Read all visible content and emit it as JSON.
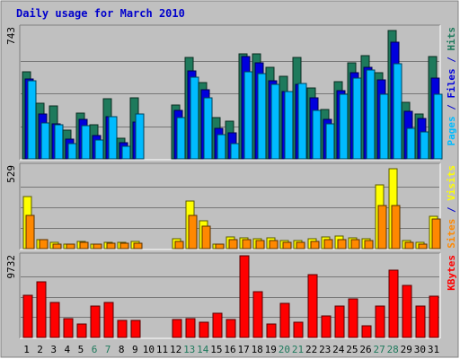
{
  "colors": {
    "background": "#C0C0C0",
    "frame_bg": "#FFFFFF",
    "title": "#0000CC",
    "hits": "#1E7A5C",
    "files": "#0000DD",
    "pages": "#00BBFF",
    "visits": "#FFFF00",
    "sites": "#FF8800",
    "kbytes": "#FF0000",
    "weekend_label": "#1E7A5C",
    "weekday_label": "#000000",
    "grid": "#777777"
  },
  "chart_data": {
    "type": "bar",
    "title": "Daily usage for March 2010",
    "days": [
      "1",
      "2",
      "3",
      "4",
      "5",
      "6",
      "7",
      "8",
      "9",
      "10",
      "11",
      "12",
      "13",
      "14",
      "15",
      "16",
      "17",
      "18",
      "19",
      "20",
      "21",
      "22",
      "23",
      "24",
      "25",
      "26",
      "27",
      "28",
      "29",
      "30",
      "31"
    ],
    "weekend_days": [
      "6",
      "7",
      "13",
      "14",
      "20",
      "21",
      "27",
      "28"
    ],
    "panels": [
      {
        "id": "hits_files_pages",
        "max_label": "743",
        "max": 743,
        "axis_label_parts": [
          {
            "text": "Pages",
            "color_key": "pages"
          },
          {
            "text": " / ",
            "color_key": "title"
          },
          {
            "text": "Files",
            "color_key": "files"
          },
          {
            "text": " / ",
            "color_key": "title"
          },
          {
            "text": "Hits",
            "color_key": "hits"
          }
        ],
        "series": [
          {
            "name": "Hits",
            "color_key": "hits",
            "values": [
              496,
              316,
              298,
              161,
              262,
              193,
              340,
              118,
              344,
              0,
              0,
              305,
              576,
              435,
              234,
              214,
              597,
              593,
              520,
              467,
              574,
              402,
              279,
              437,
              544,
              585,
              488,
              727,
              321,
              252,
              581
            ]
          },
          {
            "name": "Files",
            "color_key": "files",
            "values": [
              452,
              254,
              201,
              114,
              224,
              133,
              241,
              94,
              208,
              0,
              0,
              275,
              498,
              393,
              175,
              150,
              582,
              542,
              442,
              383,
              420,
              348,
              226,
              386,
              489,
              519,
              446,
              660,
              268,
              229,
              460
            ]
          },
          {
            "name": "Pages",
            "color_key": "pages",
            "values": [
              442,
              204,
              194,
              86,
              189,
              106,
              238,
              69,
              255,
              0,
              0,
              236,
              463,
              347,
              138,
              88,
              496,
              482,
              420,
              384,
              427,
              276,
              199,
              365,
              459,
              502,
              367,
              537,
              172,
              152,
              367
            ]
          }
        ]
      },
      {
        "id": "visits_sites",
        "max_label": "529",
        "max": 529,
        "axis_label_parts": [
          {
            "text": "Sites",
            "color_key": "sites"
          },
          {
            "text": " / ",
            "color_key": "title"
          },
          {
            "text": "Visits",
            "color_key": "visits"
          }
        ],
        "series": [
          {
            "name": "Visits",
            "color_key": "visits",
            "values": [
              335,
              60,
              40,
              31,
              44,
              30,
              43,
              40,
              44,
              0,
              0,
              66,
              304,
              180,
              31,
              75,
              69,
              66,
              70,
              52,
              52,
              62,
              73,
              79,
              69,
              65,
              406,
              514,
              50,
              40,
              208
            ]
          },
          {
            "name": "Sites",
            "color_key": "sites",
            "values": [
              212,
              56,
              31,
              30,
              40,
              26,
              37,
              35,
              36,
              0,
              0,
              47,
              215,
              142,
              26,
              56,
              55,
              53,
              53,
              39,
              39,
              45,
              57,
              59,
              55,
              50,
              276,
              277,
              39,
              31,
              187
            ]
          }
        ]
      },
      {
        "id": "kbytes",
        "max_label": "9732",
        "max": 9732,
        "axis_label_parts": [
          {
            "text": "KBytes",
            "color_key": "kbytes"
          }
        ],
        "series": [
          {
            "name": "KBytes",
            "color_key": "kbytes",
            "values": [
              5005,
              6666,
              4220,
              2292,
              1629,
              3748,
              4220,
              2015,
              2015,
              0,
              0,
              2154,
              2223,
              1768,
              2848,
              2154,
              9732,
              5422,
              1629,
              4079,
              1768,
              7499,
              2570,
              3748,
              4638,
              1382,
              3748,
              8052,
              6180,
              3748,
              4867
            ]
          }
        ]
      }
    ]
  }
}
